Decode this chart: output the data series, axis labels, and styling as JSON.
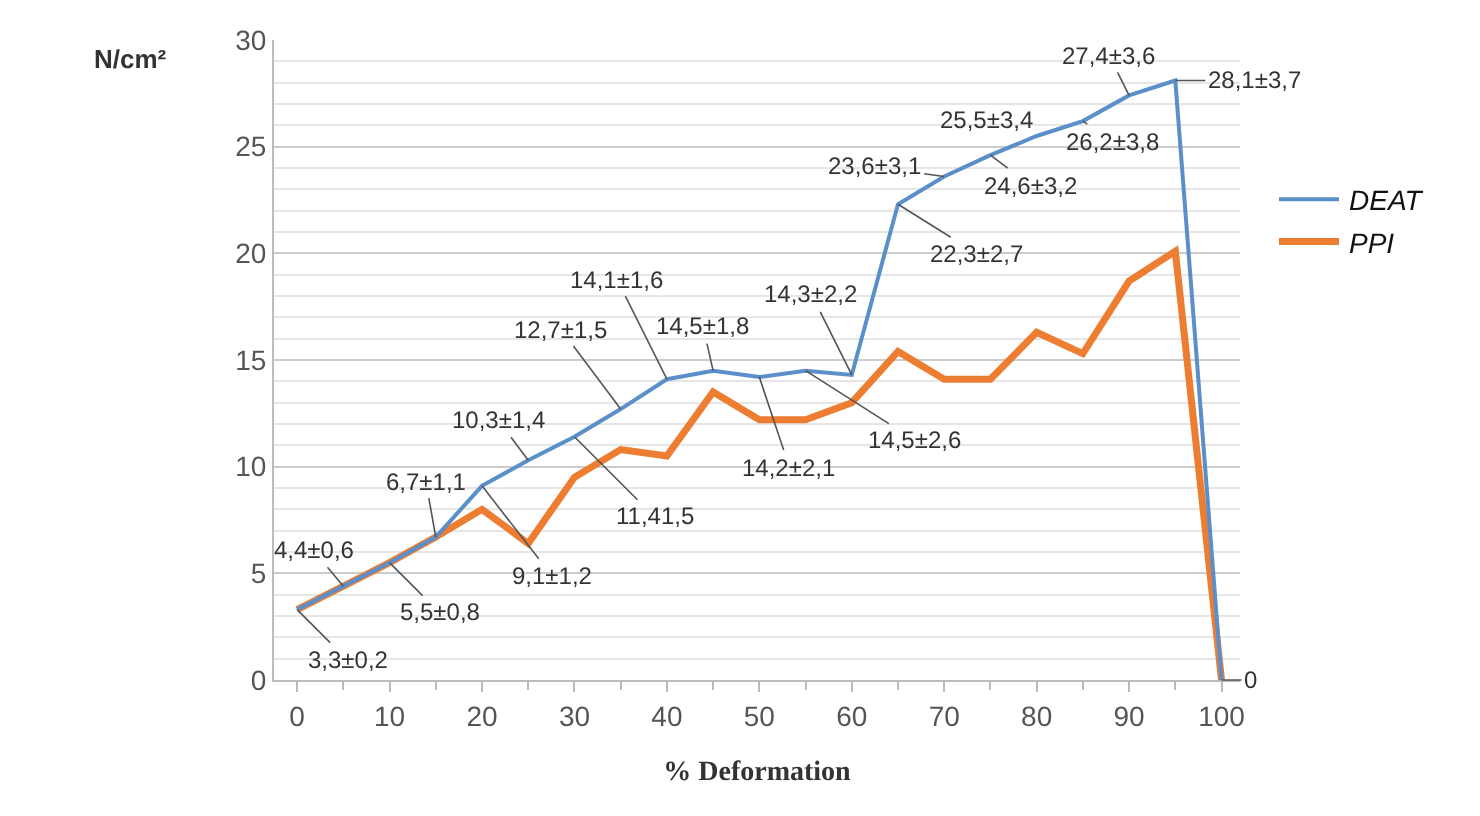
{
  "chart_data": {
    "type": "line",
    "xlabel": "% Deformation",
    "ylabel": "N/cm²",
    "x": [
      0,
      5,
      10,
      15,
      20,
      25,
      30,
      35,
      40,
      45,
      50,
      55,
      60,
      65,
      70,
      75,
      80,
      85,
      90,
      95,
      100
    ],
    "xlim": [
      -2.5,
      102
    ],
    "xticks": [
      0,
      10,
      20,
      30,
      40,
      50,
      60,
      70,
      80,
      90,
      100
    ],
    "ylim": [
      0,
      30
    ],
    "yticks": [
      0,
      5,
      10,
      15,
      20,
      25,
      30
    ],
    "grid": "y",
    "legend": "right",
    "marker": "none",
    "line_style": "solid",
    "series": [
      {
        "name": "DEAT",
        "color": "#5b8fc9",
        "values": [
          3.3,
          4.4,
          5.5,
          6.7,
          9.1,
          10.3,
          11.4,
          12.7,
          14.1,
          14.5,
          14.2,
          14.5,
          14.3,
          22.3,
          23.6,
          24.6,
          25.5,
          26.2,
          27.4,
          28.1,
          0
        ],
        "value_labels": [
          "3,3±0,2",
          "4,4±0,6",
          "5,5±0,8",
          "6,7±1,1",
          "9,1±1,2",
          "10,3±1,4",
          "11,41,5",
          "12,7±1,5",
          "14,1±1,6",
          "14,5±1,8",
          "14,2±2,1",
          "14,5±2,6",
          "14,3±2,2",
          "22,3±2,7",
          "23,6±3,1",
          "24,6±3,2",
          "25,5±3,4",
          "26,2±3,8",
          "27,4±3,6",
          "28,1±3,7",
          "0"
        ]
      },
      {
        "name": "PPI",
        "color": "#ed7d31",
        "values": [
          3.3,
          4.4,
          5.5,
          6.7,
          8.0,
          6.4,
          9.5,
          10.8,
          10.5,
          13.5,
          12.2,
          12.2,
          13.0,
          15.4,
          14.1,
          14.1,
          16.3,
          15.3,
          18.7,
          20.1,
          0
        ]
      }
    ]
  }
}
